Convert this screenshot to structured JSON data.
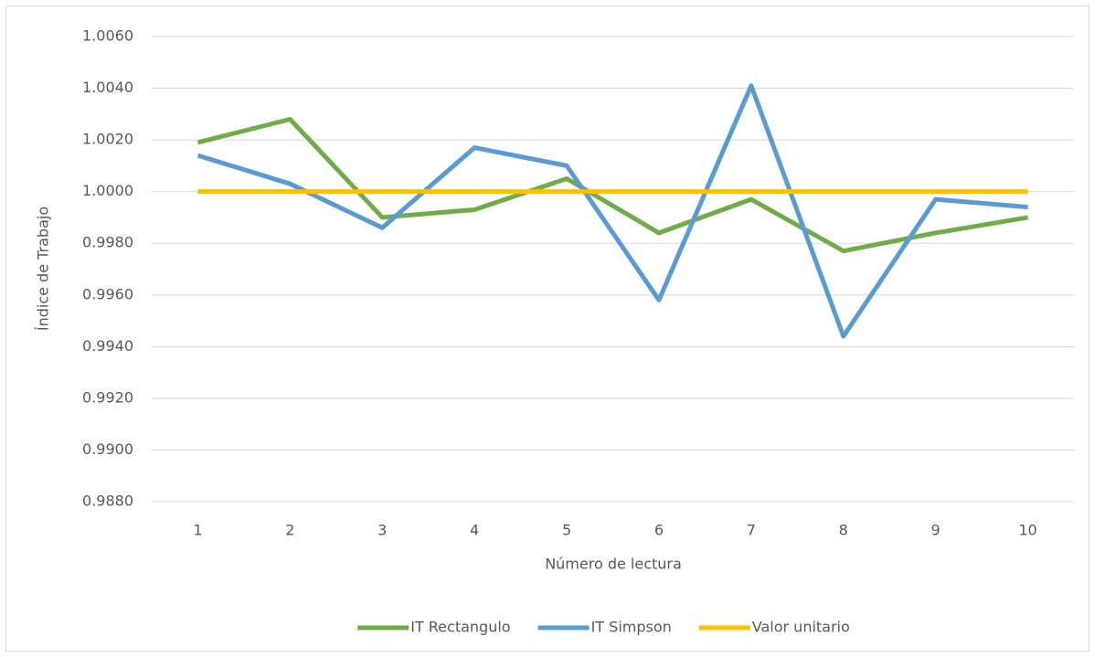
{
  "chart_data": {
    "type": "line",
    "xlabel": "Número de lectura",
    "ylabel": "Índice de Trabajo",
    "categories": [
      "1",
      "2",
      "3",
      "4",
      "5",
      "6",
      "7",
      "8",
      "9",
      "10"
    ],
    "series": [
      {
        "name": "IT Rectangulo",
        "color": "#70ad47",
        "values": [
          1.0019,
          1.0028,
          0.999,
          0.9993,
          1.0005,
          0.9984,
          0.9997,
          0.9977,
          0.9984,
          0.999
        ]
      },
      {
        "name": "IT Simpson",
        "color": "#5b9bd5",
        "values": [
          1.0014,
          1.0003,
          0.9986,
          1.0017,
          1.001,
          0.9958,
          1.0041,
          0.9944,
          0.9997,
          0.9994
        ]
      },
      {
        "name": "Valor unitario",
        "color": "#ffc000",
        "values": [
          1.0,
          1.0,
          1.0,
          1.0,
          1.0,
          1.0,
          1.0,
          1.0,
          1.0,
          1.0
        ]
      }
    ],
    "ylim": [
      0.988,
      1.006
    ],
    "yticks": [
      {
        "value": 0.988,
        "label": "0.9880"
      },
      {
        "value": 0.99,
        "label": "0.9900"
      },
      {
        "value": 0.992,
        "label": "0.9920"
      },
      {
        "value": 0.994,
        "label": "0.9940"
      },
      {
        "value": 0.996,
        "label": "0.9960"
      },
      {
        "value": 0.998,
        "label": "0.9980"
      },
      {
        "value": 1.0,
        "label": "1.0000"
      },
      {
        "value": 1.002,
        "label": "1.0020"
      },
      {
        "value": 1.004,
        "label": "1.0040"
      },
      {
        "value": 1.006,
        "label": "1.0060"
      }
    ],
    "grid": true,
    "legend": "bottom"
  }
}
